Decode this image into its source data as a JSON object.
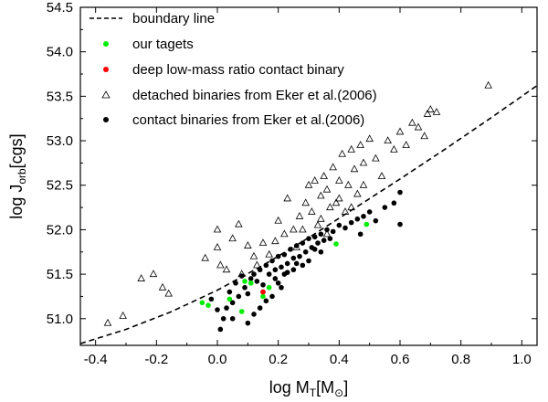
{
  "chart_data": {
    "type": "scatter",
    "title": "",
    "xlabel": "log M_T[M_⊙]",
    "xlabel_parts": {
      "base": "log M",
      "sub": "T",
      "rest": "[M",
      "sub2": "⊙",
      "end": "]"
    },
    "ylabel": "log J_orb[cgs]",
    "ylabel_parts": {
      "base": "log J",
      "sub": "orb",
      "rest": "[cgs]"
    },
    "xlim": [
      -0.45,
      1.05
    ],
    "ylim": [
      50.7,
      54.5
    ],
    "xticks": [
      -0.4,
      -0.2,
      0.0,
      0.2,
      0.4,
      0.6,
      0.8,
      1.0
    ],
    "xtick_labels": [
      "-0.4",
      "-0.2",
      "0.0",
      "0.2",
      "0.4",
      "0.6",
      "0.8",
      "1.0"
    ],
    "yticks": [
      51.0,
      51.5,
      52.0,
      52.5,
      53.0,
      53.5,
      54.0,
      54.5
    ],
    "ytick_labels": [
      "51.0",
      "51.5",
      "52.0",
      "52.5",
      "53.0",
      "53.5",
      "54.0",
      "54.5"
    ],
    "legend_position": "top-left",
    "boundary_line": {
      "name": "boundary line",
      "style": "dashed",
      "color": "#000000",
      "x": [
        -0.45,
        -0.3,
        -0.15,
        0.0,
        0.15,
        0.3,
        0.45,
        0.6,
        0.75,
        0.9,
        1.05
      ],
      "y": [
        50.72,
        50.88,
        51.08,
        51.32,
        51.6,
        51.91,
        52.24,
        52.57,
        52.91,
        53.26,
        53.62
      ]
    },
    "series": [
      {
        "name": "detached binaries from Eker et al.(2006)",
        "marker": "triangle-open",
        "color": "#000000",
        "points": [
          [
            -0.36,
            50.95
          ],
          [
            -0.31,
            51.03
          ],
          [
            -0.25,
            51.45
          ],
          [
            -0.21,
            51.5
          ],
          [
            -0.18,
            51.35
          ],
          [
            -0.16,
            51.28
          ],
          [
            -0.04,
            51.68
          ],
          [
            0.0,
            52.0
          ],
          [
            0.0,
            51.8
          ],
          [
            0.01,
            51.6
          ],
          [
            0.03,
            51.55
          ],
          [
            0.05,
            51.9
          ],
          [
            0.07,
            52.06
          ],
          [
            0.1,
            51.82
          ],
          [
            0.12,
            51.7
          ],
          [
            0.15,
            51.85
          ],
          [
            0.19,
            51.87
          ],
          [
            0.22,
            51.95
          ],
          [
            0.25,
            52.0
          ],
          [
            0.27,
            52.15
          ],
          [
            0.29,
            52.3
          ],
          [
            0.31,
            52.2
          ],
          [
            0.33,
            52.05
          ],
          [
            0.34,
            52.38
          ],
          [
            0.35,
            52.6
          ],
          [
            0.36,
            52.45
          ],
          [
            0.37,
            52.25
          ],
          [
            0.38,
            52.7
          ],
          [
            0.39,
            52.3
          ],
          [
            0.4,
            52.55
          ],
          [
            0.41,
            52.85
          ],
          [
            0.42,
            52.2
          ],
          [
            0.43,
            52.5
          ],
          [
            0.44,
            52.9
          ],
          [
            0.45,
            52.68
          ],
          [
            0.46,
            52.4
          ],
          [
            0.47,
            52.95
          ],
          [
            0.48,
            52.75
          ],
          [
            0.5,
            53.02
          ],
          [
            0.52,
            52.8
          ],
          [
            0.54,
            52.6
          ],
          [
            0.56,
            53.0
          ],
          [
            0.58,
            52.9
          ],
          [
            0.6,
            53.1
          ],
          [
            0.62,
            52.95
          ],
          [
            0.64,
            53.2
          ],
          [
            0.66,
            53.15
          ],
          [
            0.68,
            53.05
          ],
          [
            0.69,
            53.3
          ],
          [
            0.7,
            53.35
          ],
          [
            0.72,
            53.32
          ],
          [
            0.89,
            53.62
          ],
          [
            0.17,
            51.72
          ],
          [
            0.2,
            52.1
          ],
          [
            0.23,
            52.35
          ],
          [
            0.26,
            51.8
          ],
          [
            0.28,
            52.0
          ],
          [
            0.3,
            52.5
          ],
          [
            0.32,
            52.55
          ],
          [
            0.34,
            52.12
          ],
          [
            0.36,
            51.95
          ],
          [
            0.4,
            52.35
          ],
          [
            0.44,
            52.25
          ],
          [
            0.48,
            52.5
          ],
          [
            0.08,
            51.5
          ],
          [
            0.13,
            51.6
          ]
        ]
      },
      {
        "name": "contact binaries from Eker et al.(2006)",
        "marker": "circle-filled",
        "color": "#000000",
        "points": [
          [
            -0.02,
            51.22
          ],
          [
            0.0,
            51.1
          ],
          [
            0.01,
            50.88
          ],
          [
            0.02,
            51.0
          ],
          [
            0.03,
            51.12
          ],
          [
            0.04,
            51.3
          ],
          [
            0.05,
            51.18
          ],
          [
            0.06,
            51.4
          ],
          [
            0.07,
            51.25
          ],
          [
            0.08,
            51.48
          ],
          [
            0.09,
            51.35
          ],
          [
            0.1,
            51.28
          ],
          [
            0.11,
            51.45
          ],
          [
            0.12,
            51.5
          ],
          [
            0.13,
            51.42
          ],
          [
            0.14,
            51.55
          ],
          [
            0.15,
            51.38
          ],
          [
            0.16,
            51.6
          ],
          [
            0.17,
            51.5
          ],
          [
            0.18,
            51.65
          ],
          [
            0.19,
            51.45
          ],
          [
            0.2,
            51.7
          ],
          [
            0.21,
            51.58
          ],
          [
            0.22,
            51.72
          ],
          [
            0.23,
            51.62
          ],
          [
            0.24,
            51.78
          ],
          [
            0.25,
            51.68
          ],
          [
            0.26,
            51.82
          ],
          [
            0.27,
            51.7
          ],
          [
            0.28,
            51.85
          ],
          [
            0.29,
            51.75
          ],
          [
            0.3,
            51.9
          ],
          [
            0.31,
            51.8
          ],
          [
            0.32,
            51.92
          ],
          [
            0.33,
            51.85
          ],
          [
            0.34,
            51.95
          ],
          [
            0.35,
            51.88
          ],
          [
            0.36,
            52.0
          ],
          [
            0.37,
            51.9
          ],
          [
            0.38,
            51.98
          ],
          [
            0.4,
            52.05
          ],
          [
            0.42,
            52.02
          ],
          [
            0.44,
            52.08
          ],
          [
            0.46,
            52.12
          ],
          [
            0.48,
            52.15
          ],
          [
            0.5,
            52.2
          ],
          [
            0.52,
            52.1
          ],
          [
            0.55,
            52.25
          ],
          [
            0.58,
            52.3
          ],
          [
            0.6,
            52.42
          ],
          [
            0.6,
            52.06
          ],
          [
            0.47,
            51.95
          ],
          [
            0.12,
            51.05
          ],
          [
            0.14,
            51.12
          ],
          [
            0.16,
            51.2
          ],
          [
            0.18,
            51.25
          ],
          [
            0.1,
            50.95
          ],
          [
            0.05,
            51.0
          ],
          [
            0.2,
            51.4
          ],
          [
            0.22,
            51.5
          ],
          [
            0.25,
            51.55
          ],
          [
            0.28,
            51.6
          ],
          [
            0.3,
            51.65
          ],
          [
            0.15,
            51.3
          ],
          [
            0.19,
            51.55
          ],
          [
            0.23,
            51.52
          ],
          [
            0.26,
            51.62
          ],
          [
            0.32,
            51.78
          ],
          [
            0.34,
            51.75
          ],
          [
            0.21,
            51.35
          ]
        ]
      },
      {
        "name": "our tagets",
        "marker": "circle-filled",
        "color": "#00ee00",
        "points": [
          [
            -0.05,
            51.18
          ],
          [
            -0.03,
            51.15
          ],
          [
            0.04,
            51.22
          ],
          [
            0.08,
            51.08
          ],
          [
            0.09,
            51.42
          ],
          [
            0.11,
            51.4
          ],
          [
            0.15,
            51.25
          ],
          [
            0.17,
            51.35
          ],
          [
            0.39,
            51.84
          ],
          [
            0.49,
            52.06
          ]
        ]
      },
      {
        "name": "deep low-mass ratio contact binary",
        "marker": "circle-filled",
        "color": "#ff0000",
        "points": [
          [
            0.15,
            51.3
          ]
        ]
      }
    ]
  },
  "legend": [
    {
      "label": "boundary line",
      "marker": "dashed-line",
      "color": "#000000"
    },
    {
      "label": "our tagets",
      "marker": "circle-filled",
      "color": "#00ee00"
    },
    {
      "label": "deep low-mass ratio contact binary",
      "marker": "circle-filled",
      "color": "#ff0000"
    },
    {
      "label": "detached binaries from Eker et al.(2006)",
      "marker": "triangle-open",
      "color": "#000000"
    },
    {
      "label": "contact binaries from Eker et al.(2006)",
      "marker": "circle-filled",
      "color": "#000000"
    }
  ]
}
